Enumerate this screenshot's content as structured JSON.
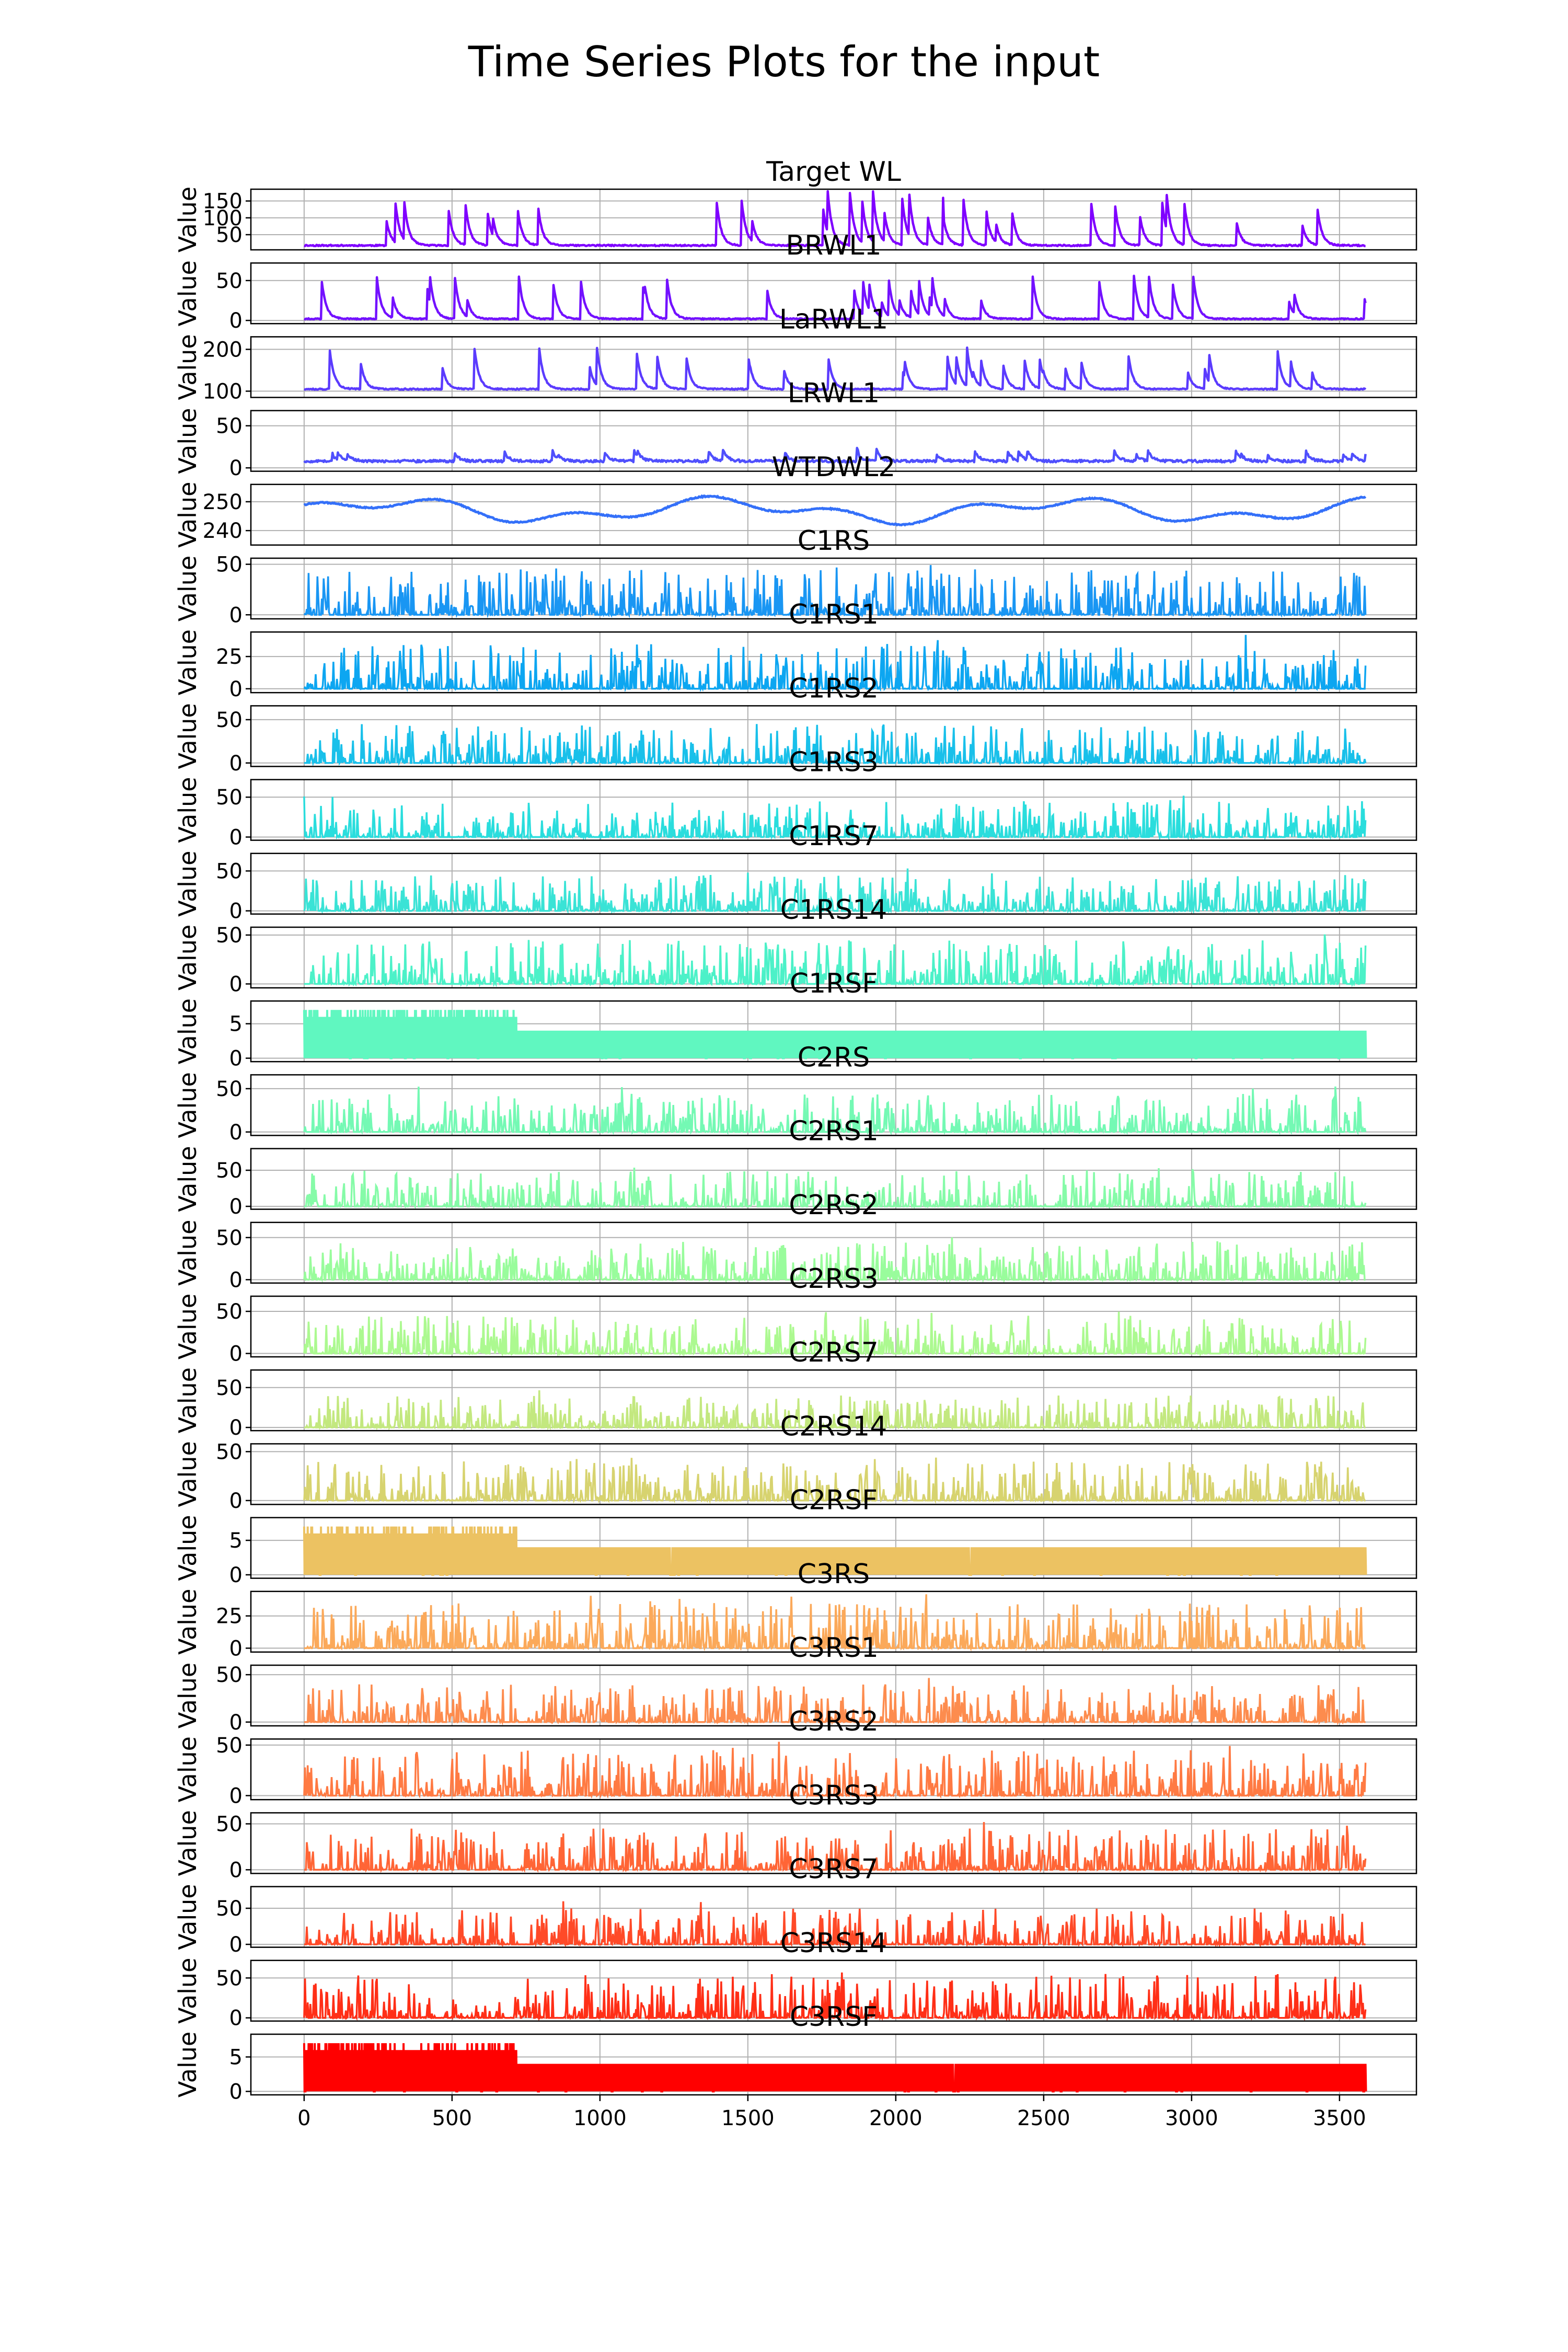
{
  "figure": {
    "title": "Time Series Plots for the input"
  },
  "chart_data": {
    "type": "line",
    "title": "Time Series Plots for the input",
    "x_range": [
      -180,
      3760
    ],
    "x_ticks": [
      0,
      500,
      1000,
      1500,
      2000,
      2500,
      3000,
      3500
    ],
    "n_points": 3590,
    "grid": true,
    "ylabel": "Value",
    "panels": [
      {
        "title": "Target WL",
        "color": "#7f00ff",
        "yticks": [
          50,
          100,
          150
        ],
        "ylim": [
          5,
          185
        ],
        "kind": "spike",
        "base": 18,
        "noise": 4,
        "peak": 160,
        "rate": 0.01,
        "seed": 11
      },
      {
        "title": "BRWL1",
        "color": "#7311ff",
        "yticks": [
          0,
          50
        ],
        "ylim": [
          -4,
          72
        ],
        "kind": "spike",
        "base": 2,
        "noise": 1.5,
        "peak": 55,
        "rate": 0.01,
        "seed": 12
      },
      {
        "title": "LaRWL1",
        "color": "#5b3bfe",
        "yticks": [
          100,
          200
        ],
        "ylim": [
          85,
          230
        ],
        "kind": "spike",
        "base": 105,
        "noise": 3,
        "peak": 100,
        "rate": 0.01,
        "seed": 13
      },
      {
        "title": "LRWL1",
        "color": "#4f4ffd",
        "yticks": [
          0,
          50
        ],
        "ylim": [
          -4,
          68
        ],
        "kind": "spike",
        "base": 8,
        "noise": 3,
        "peak": 15,
        "rate": 0.008,
        "seed": 14
      },
      {
        "title": "WTDWL2",
        "color": "#3470f9",
        "yticks": [
          240,
          250
        ],
        "ylim": [
          235,
          256
        ],
        "kind": "smooth",
        "base": 247,
        "amp": 5,
        "seed": 15
      },
      {
        "title": "C1RS",
        "color": "#1996f3",
        "yticks": [
          0,
          50
        ],
        "ylim": [
          -4,
          56
        ],
        "kind": "rain",
        "peak": 45,
        "seed": 16
      },
      {
        "title": "C1RS1",
        "color": "#0da6f1",
        "yticks": [
          0,
          25
        ],
        "ylim": [
          -3,
          44
        ],
        "kind": "rain",
        "peak": 35,
        "seed": 17
      },
      {
        "title": "C1RS2",
        "color": "#19c0ea",
        "yticks": [
          0,
          50
        ],
        "ylim": [
          -4,
          66
        ],
        "kind": "rain",
        "peak": 45,
        "seed": 18
      },
      {
        "title": "C1RS3",
        "color": "#2adddd",
        "yticks": [
          0,
          50
        ],
        "ylim": [
          -4,
          72
        ],
        "kind": "rain",
        "peak": 45,
        "seed": 19
      },
      {
        "title": "C1RS7",
        "color": "#3ae3d6",
        "yticks": [
          0,
          50
        ],
        "ylim": [
          -4,
          72
        ],
        "kind": "rain",
        "peak": 45,
        "seed": 20
      },
      {
        "title": "C1RS14",
        "color": "#4cf1c8",
        "yticks": [
          0,
          50
        ],
        "ylim": [
          -4,
          58
        ],
        "kind": "rain",
        "peak": 45,
        "seed": 21
      },
      {
        "title": "C1RSF",
        "color": "#60f7c0",
        "yticks": [
          0,
          5
        ],
        "ylim": [
          -0.5,
          8.3
        ],
        "kind": "step",
        "seed": 22
      },
      {
        "title": "C2RS",
        "color": "#74f9b4",
        "yticks": [
          0,
          50
        ],
        "ylim": [
          -4,
          66
        ],
        "kind": "rain",
        "peak": 45,
        "seed": 23
      },
      {
        "title": "C2RS1",
        "color": "#86fba8",
        "yticks": [
          0,
          50
        ],
        "ylim": [
          -4,
          80
        ],
        "kind": "rain",
        "peak": 50,
        "seed": 24
      },
      {
        "title": "C2RS2",
        "color": "#99fc9c",
        "yticks": [
          0,
          50
        ],
        "ylim": [
          -4,
          68
        ],
        "kind": "rain",
        "peak": 45,
        "seed": 25
      },
      {
        "title": "C2RS3",
        "color": "#acf990",
        "yticks": [
          0,
          50
        ],
        "ylim": [
          -4,
          68
        ],
        "kind": "rain",
        "peak": 45,
        "seed": 26
      },
      {
        "title": "C2RS7",
        "color": "#c3e87f",
        "yticks": [
          0,
          50
        ],
        "ylim": [
          -4,
          72
        ],
        "kind": "rain",
        "peak": 40,
        "seed": 27
      },
      {
        "title": "C2RS14",
        "color": "#d7d36f",
        "yticks": [
          0,
          50
        ],
        "ylim": [
          -4,
          58
        ],
        "kind": "rain",
        "peak": 40,
        "seed": 28
      },
      {
        "title": "C2RSF",
        "color": "#ecc262",
        "yticks": [
          0,
          5
        ],
        "ylim": [
          -0.5,
          8.3
        ],
        "kind": "step",
        "seed": 29
      },
      {
        "title": "C3RS",
        "color": "#fba95a",
        "yticks": [
          0,
          25
        ],
        "ylim": [
          -3,
          44
        ],
        "kind": "rain",
        "peak": 35,
        "seed": 30
      },
      {
        "title": "C3RS1",
        "color": "#fd8c4e",
        "yticks": [
          0,
          50
        ],
        "ylim": [
          -4,
          60
        ],
        "kind": "rain",
        "peak": 40,
        "seed": 31
      },
      {
        "title": "C3RS2",
        "color": "#ff7a43",
        "yticks": [
          0,
          50
        ],
        "ylim": [
          -4,
          56
        ],
        "kind": "rain",
        "peak": 45,
        "seed": 32
      },
      {
        "title": "C3RS3",
        "color": "#ff6536",
        "yticks": [
          0,
          50
        ],
        "ylim": [
          -4,
          62
        ],
        "kind": "rain",
        "peak": 45,
        "seed": 33
      },
      {
        "title": "C3RS7",
        "color": "#ff4a28",
        "yticks": [
          0,
          50
        ],
        "ylim": [
          -4,
          80
        ],
        "kind": "rain",
        "peak": 50,
        "seed": 34
      },
      {
        "title": "C3RS14",
        "color": "#ff2f17",
        "yticks": [
          0,
          50
        ],
        "ylim": [
          -4,
          72
        ],
        "kind": "rain",
        "peak": 55,
        "seed": 35
      },
      {
        "title": "C3RSF",
        "color": "#ff0000",
        "yticks": [
          0,
          5
        ],
        "ylim": [
          -0.5,
          8.3
        ],
        "kind": "step",
        "seed": 36
      }
    ]
  }
}
